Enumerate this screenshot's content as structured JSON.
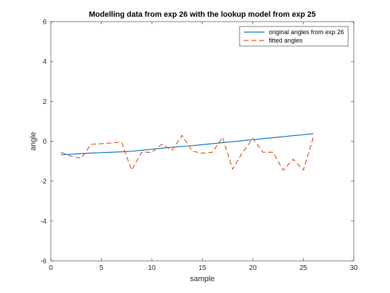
{
  "chart_data": {
    "type": "line",
    "title": "Modelling data from exp 26 with the lookup model from exp 25",
    "xlabel": "sample",
    "ylabel": "angle",
    "xlim": [
      0,
      30
    ],
    "ylim": [
      -6,
      6
    ],
    "xticks": [
      0,
      5,
      10,
      15,
      20,
      25,
      30
    ],
    "yticks": [
      -6,
      -4,
      -2,
      0,
      2,
      4,
      6
    ],
    "grid": false,
    "legend_position": "top-right",
    "series": [
      {
        "name": "original angles from exp 26",
        "color": "#0072BD",
        "style": "solid",
        "x": [
          1,
          2,
          3,
          4,
          5,
          6,
          7,
          8,
          9,
          10,
          11,
          12,
          13,
          14,
          15,
          16,
          17,
          18,
          19,
          20,
          21,
          22,
          23,
          24,
          25,
          26
        ],
        "y": [
          -0.68,
          -0.65,
          -0.62,
          -0.59,
          -0.57,
          -0.55,
          -0.53,
          -0.5,
          -0.45,
          -0.4,
          -0.35,
          -0.3,
          -0.26,
          -0.22,
          -0.17,
          -0.12,
          -0.07,
          -0.02,
          0.03,
          0.08,
          0.13,
          0.18,
          0.23,
          0.28,
          0.33,
          0.38
        ]
      },
      {
        "name": "fitted angles",
        "color": "#D95319",
        "style": "dashed",
        "x": [
          1,
          2,
          3,
          4,
          5,
          6,
          7,
          8,
          9,
          10,
          11,
          12,
          13,
          14,
          15,
          16,
          17,
          18,
          19,
          20,
          21,
          22,
          23,
          24,
          25,
          26
        ],
        "y": [
          -0.55,
          -0.75,
          -0.85,
          -0.15,
          -0.12,
          -0.08,
          -0.05,
          -1.45,
          -0.55,
          -0.55,
          -0.15,
          -0.45,
          0.3,
          -0.5,
          -0.6,
          -0.55,
          0.2,
          -1.4,
          -0.55,
          0.15,
          -0.55,
          -0.55,
          -1.45,
          -0.9,
          -1.45,
          0.2
        ]
      }
    ]
  }
}
